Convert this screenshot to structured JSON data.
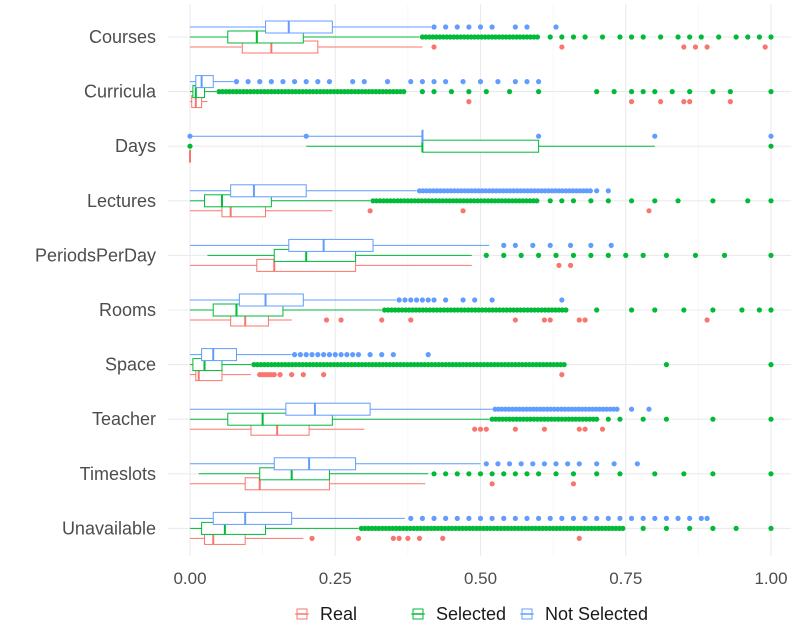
{
  "chart_data": {
    "type": "boxplot",
    "title": "",
    "xlabel": "",
    "ylabel": "",
    "xlim": [
      0,
      1
    ],
    "x_ticks": [
      "0.00",
      "0.25",
      "0.50",
      "0.75",
      "1.00"
    ],
    "x_tick_values": [
      0,
      0.25,
      0.5,
      0.75,
      1.0
    ],
    "grid": true,
    "legend_position": "bottom",
    "categories": [
      "Courses",
      "Curricula",
      "Days",
      "Lectures",
      "PeriodsPerDay",
      "Rooms",
      "Space",
      "Teacher",
      "Timeslots",
      "Unavailable"
    ],
    "series": [
      {
        "name": "Real",
        "color": "#F8766D",
        "boxes": [
          {
            "whisker_low": 0.0,
            "q1": 0.09,
            "median": 0.14,
            "q3": 0.22,
            "whisker_high": 0.4,
            "outliers": [
              0.42,
              0.64,
              0.85,
              0.87,
              0.89,
              0.99
            ]
          },
          {
            "whisker_low": 0.0,
            "q1": 0.003,
            "median": 0.01,
            "q3": 0.02,
            "whisker_high": 0.03,
            "outliers": [
              0.48,
              0.76,
              0.81,
              0.85,
              0.86,
              0.93
            ]
          },
          {
            "whisker_low": 0.0,
            "q1": 0.0,
            "median": 0.0,
            "q3": 0.0,
            "whisker_high": 0.0,
            "outliers": []
          },
          {
            "whisker_low": 0.0,
            "q1": 0.055,
            "median": 0.07,
            "q3": 0.13,
            "whisker_high": 0.245,
            "outliers": [
              0.31,
              0.47,
              0.79
            ]
          },
          {
            "whisker_low": 0.0,
            "q1": 0.115,
            "median": 0.145,
            "q3": 0.285,
            "whisker_high": 0.485,
            "outliers": [
              0.635,
              0.655
            ]
          },
          {
            "whisker_low": 0.0,
            "q1": 0.07,
            "median": 0.095,
            "q3": 0.135,
            "whisker_high": 0.175,
            "outliers": [
              0.235,
              0.26,
              0.33,
              0.38,
              0.56,
              0.61,
              0.62,
              0.67,
              0.68,
              0.89
            ]
          },
          {
            "whisker_low": 0.0,
            "q1": 0.01,
            "median": 0.015,
            "q3": 0.055,
            "whisker_high": 0.105,
            "outliers": [
              0.12,
              0.125,
              0.13,
              0.135,
              0.14,
              0.145,
              0.155,
              0.175,
              0.195,
              0.23,
              0.64
            ]
          },
          {
            "whisker_low": 0.0,
            "q1": 0.105,
            "median": 0.15,
            "q3": 0.205,
            "whisker_high": 0.3,
            "outliers": [
              0.49,
              0.5,
              0.51,
              0.56,
              0.61,
              0.67,
              0.68,
              0.71
            ]
          },
          {
            "whisker_low": 0.0,
            "q1": 0.095,
            "median": 0.12,
            "q3": 0.24,
            "whisker_high": 0.405,
            "outliers": [
              0.52,
              0.66
            ]
          },
          {
            "whisker_low": 0.0,
            "q1": 0.025,
            "median": 0.04,
            "q3": 0.095,
            "whisker_high": 0.195,
            "outliers": [
              0.21,
              0.29,
              0.35,
              0.36,
              0.375,
              0.395,
              0.435,
              0.67
            ]
          }
        ]
      },
      {
        "name": "Selected",
        "color": "#00BA38",
        "boxes": [
          {
            "whisker_low": 0.0,
            "q1": 0.065,
            "median": 0.115,
            "q3": 0.195,
            "whisker_high": 0.395,
            "outliers_start": 0.4,
            "outliers_end": 0.6,
            "outliers": [
              0.62,
              0.64,
              0.66,
              0.68,
              0.71,
              0.74,
              0.76,
              0.78,
              0.81,
              0.84,
              0.86,
              0.88,
              0.91,
              0.94,
              0.96,
              0.98,
              1.0
            ]
          },
          {
            "whisker_low": 0.0,
            "q1": 0.005,
            "median": 0.01,
            "q3": 0.025,
            "whisker_high": 0.045,
            "outliers_start": 0.05,
            "outliers_end": 0.37,
            "outliers": [
              0.4,
              0.42,
              0.45,
              0.48,
              0.51,
              0.55,
              0.6,
              0.7,
              0.73,
              0.76,
              0.78,
              0.8,
              0.83,
              0.86,
              0.9,
              0.93,
              1.0
            ]
          },
          {
            "whisker_low": 0.2,
            "q1": 0.4,
            "median": 0.4,
            "q3": 0.6,
            "whisker_high": 0.8,
            "outliers": [
              0.0,
              1.0
            ]
          },
          {
            "whisker_low": 0.0,
            "q1": 0.025,
            "median": 0.055,
            "q3": 0.14,
            "whisker_high": 0.31,
            "outliers_start": 0.315,
            "outliers_end": 0.6,
            "outliers": [
              0.62,
              0.64,
              0.66,
              0.69,
              0.72,
              0.76,
              0.8,
              0.84,
              0.9,
              0.96,
              1.0
            ]
          },
          {
            "whisker_low": 0.03,
            "q1": 0.145,
            "median": 0.2,
            "q3": 0.285,
            "whisker_high": 0.485,
            "outliers": [
              0.51,
              0.54,
              0.57,
              0.6,
              0.63,
              0.66,
              0.69,
              0.72,
              0.75,
              0.78,
              0.82,
              0.87,
              0.92,
              1.0
            ]
          },
          {
            "whisker_low": 0.0,
            "q1": 0.04,
            "median": 0.08,
            "q3": 0.16,
            "whisker_high": 0.33,
            "outliers_start": 0.335,
            "outliers_end": 0.65,
            "outliers": [
              0.7,
              0.76,
              0.8,
              0.85,
              0.9,
              0.95,
              0.98,
              1.0
            ]
          },
          {
            "whisker_low": 0.0,
            "q1": 0.005,
            "median": 0.025,
            "q3": 0.055,
            "whisker_high": 0.105,
            "outliers_start": 0.11,
            "outliers_end": 0.645,
            "outliers": [
              0.82,
              1.0
            ]
          },
          {
            "whisker_low": 0.0,
            "q1": 0.065,
            "median": 0.125,
            "q3": 0.245,
            "whisker_high": 0.515,
            "outliers_start": 0.52,
            "outliers_end": 0.7,
            "outliers": [
              0.72,
              0.74,
              0.78,
              0.82,
              0.9,
              1.0
            ]
          },
          {
            "whisker_low": 0.015,
            "q1": 0.12,
            "median": 0.175,
            "q3": 0.24,
            "whisker_high": 0.41,
            "outliers": [
              0.42,
              0.44,
              0.46,
              0.48,
              0.5,
              0.52,
              0.54,
              0.56,
              0.58,
              0.6,
              0.63,
              0.66,
              0.7,
              0.74,
              0.8,
              0.85,
              0.9,
              1.0
            ]
          },
          {
            "whisker_low": 0.0,
            "q1": 0.02,
            "median": 0.06,
            "q3": 0.13,
            "whisker_high": 0.29,
            "outliers_start": 0.295,
            "outliers_end": 0.75,
            "outliers": [
              0.78,
              0.82,
              0.86,
              0.9,
              0.94,
              1.0
            ]
          }
        ]
      },
      {
        "name": "Not Selected",
        "color": "#619CFF",
        "boxes": [
          {
            "whisker_low": 0.0,
            "q1": 0.13,
            "median": 0.17,
            "q3": 0.245,
            "whisker_high": 0.415,
            "outliers": [
              0.42,
              0.44,
              0.46,
              0.48,
              0.5,
              0.52,
              0.56,
              0.58,
              0.63
            ]
          },
          {
            "whisker_low": 0.0,
            "q1": 0.01,
            "median": 0.02,
            "q3": 0.04,
            "whisker_high": 0.075,
            "outliers": [
              0.08,
              0.1,
              0.12,
              0.14,
              0.16,
              0.18,
              0.2,
              0.22,
              0.24,
              0.28,
              0.3,
              0.34,
              0.38,
              0.4,
              0.42,
              0.44,
              0.47,
              0.5,
              0.53,
              0.56,
              0.58,
              0.6
            ]
          },
          {
            "whisker_low": 0.0,
            "q1": 0.4,
            "median": 0.4,
            "q3": 0.4,
            "whisker_high": 0.4,
            "outliers": [
              0.0,
              0.2,
              0.6,
              0.8,
              1.0
            ]
          },
          {
            "whisker_low": 0.0,
            "q1": 0.07,
            "median": 0.11,
            "q3": 0.2,
            "whisker_high": 0.39,
            "outliers_start": 0.395,
            "outliers_end": 0.69,
            "outliers": [
              0.7,
              0.72
            ]
          },
          {
            "whisker_low": 0.0,
            "q1": 0.17,
            "median": 0.23,
            "q3": 0.315,
            "whisker_high": 0.515,
            "outliers": [
              0.54,
              0.56,
              0.59,
              0.62,
              0.655,
              0.69,
              0.725
            ]
          },
          {
            "whisker_low": 0.0,
            "q1": 0.085,
            "median": 0.13,
            "q3": 0.195,
            "whisker_high": 0.355,
            "outliers": [
              0.36,
              0.37,
              0.38,
              0.39,
              0.4,
              0.41,
              0.42,
              0.44,
              0.47,
              0.49,
              0.52,
              0.64
            ]
          },
          {
            "whisker_low": 0.0,
            "q1": 0.02,
            "median": 0.04,
            "q3": 0.08,
            "whisker_high": 0.175,
            "outliers": [
              0.18,
              0.19,
              0.2,
              0.21,
              0.22,
              0.23,
              0.24,
              0.25,
              0.26,
              0.27,
              0.28,
              0.29,
              0.31,
              0.33,
              0.35,
              0.41
            ]
          },
          {
            "whisker_low": 0.0,
            "q1": 0.165,
            "median": 0.215,
            "q3": 0.31,
            "whisker_high": 0.52,
            "outliers_start": 0.525,
            "outliers_end": 0.74,
            "outliers": [
              0.76,
              0.79
            ]
          },
          {
            "whisker_low": 0.0,
            "q1": 0.145,
            "median": 0.205,
            "q3": 0.285,
            "whisker_high": 0.5,
            "outliers": [
              0.51,
              0.53,
              0.55,
              0.57,
              0.59,
              0.61,
              0.63,
              0.65,
              0.67,
              0.7,
              0.73,
              0.77
            ]
          },
          {
            "whisker_low": 0.0,
            "q1": 0.04,
            "median": 0.095,
            "q3": 0.175,
            "whisker_high": 0.37,
            "outliers": [
              0.38,
              0.4,
              0.42,
              0.44,
              0.46,
              0.48,
              0.5,
              0.52,
              0.54,
              0.56,
              0.58,
              0.6,
              0.62,
              0.64,
              0.66,
              0.68,
              0.7,
              0.72,
              0.74,
              0.76,
              0.78,
              0.8,
              0.82,
              0.84,
              0.86,
              0.88,
              0.89
            ]
          }
        ]
      }
    ]
  }
}
